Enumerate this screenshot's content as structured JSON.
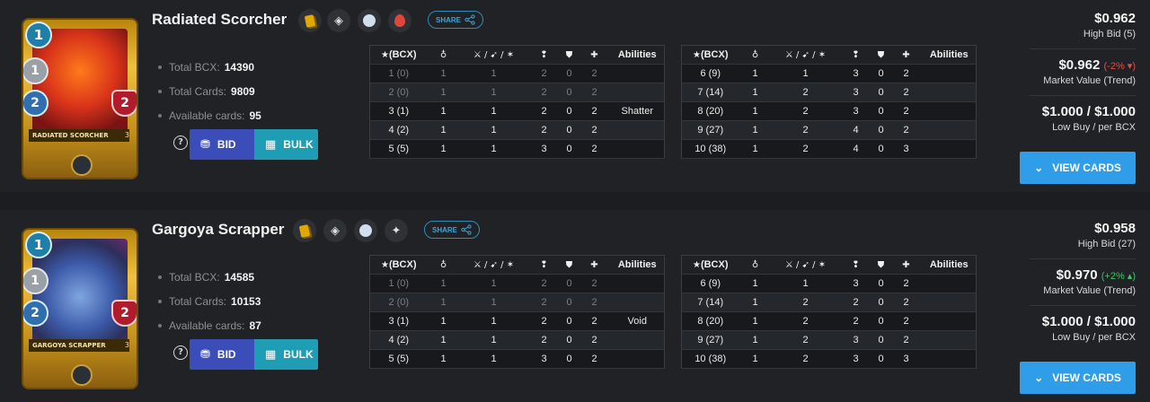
{
  "colors": {
    "background": "#1b1d20",
    "row": "#202225",
    "bid": "#3b4db8",
    "bulk": "#1e9db4",
    "view": "#2f9de8",
    "share": "#3aa7d8",
    "negative": "#e0504a",
    "positive": "#3ec46a"
  },
  "labels": {
    "share": "SHARE",
    "total_bcx": "Total BCX:",
    "total_cards": "Total Cards:",
    "available_cards": "Available cards:",
    "bid": "BID",
    "bulk": "BULK",
    "help": "?",
    "high_bid_prefix": "High Bid",
    "market_value": "Market Value (Trend)",
    "low_buy": "Low Buy / per BCX",
    "view_cards": "VIEW CARDS",
    "col_bcx": "(BCX)",
    "col_abilities": "Abilities"
  },
  "icons": [
    "star-icon",
    "mana-icon",
    "attack-icon",
    "speed-icon",
    "armor-icon",
    "health-icon",
    "share-icon",
    "coins-icon",
    "calculator-icon",
    "chevron-down-icon",
    "gold-card-icon",
    "neutral-icon",
    "water-element-icon",
    "fire-element-icon",
    "summoner-icon"
  ],
  "cards": [
    {
      "name": "Radiated Scorcher",
      "card_label": "RADIATED SCORCHER",
      "mana": "1",
      "attack": "1",
      "speed": "2",
      "health": "2",
      "card_level": "3",
      "total_bcx": "14390",
      "total_cards": "9809",
      "available_cards": "95",
      "high_bid": "$0.962",
      "high_bid_count": "High Bid (5)",
      "market_value": "$0.962",
      "trend": "(-2%",
      "trend_direction": "down",
      "low_buy": "$1.000 / $1.000",
      "icons": [
        "gold-card-icon",
        "neutral-icon",
        "water-element-icon",
        "fire-element-icon"
      ],
      "table_left": [
        [
          "1 (0)",
          "1",
          "1",
          "2",
          "0",
          "2",
          ""
        ],
        [
          "2 (0)",
          "1",
          "1",
          "2",
          "0",
          "2",
          ""
        ],
        [
          "3 (1)",
          "1",
          "1",
          "2",
          "0",
          "2",
          "Shatter"
        ],
        [
          "4 (2)",
          "1",
          "1",
          "2",
          "0",
          "2",
          ""
        ],
        [
          "5 (5)",
          "1",
          "1",
          "3",
          "0",
          "2",
          ""
        ]
      ],
      "table_right": [
        [
          "6 (9)",
          "1",
          "1",
          "3",
          "0",
          "2",
          ""
        ],
        [
          "7 (14)",
          "1",
          "2",
          "3",
          "0",
          "2",
          ""
        ],
        [
          "8 (20)",
          "1",
          "2",
          "3",
          "0",
          "2",
          ""
        ],
        [
          "9 (27)",
          "1",
          "2",
          "4",
          "0",
          "2",
          ""
        ],
        [
          "10 (38)",
          "1",
          "2",
          "4",
          "0",
          "3",
          ""
        ]
      ]
    },
    {
      "name": "Gargoya Scrapper",
      "card_label": "GARGOYA SCRAPPER",
      "mana": "1",
      "attack": "1",
      "speed": "2",
      "health": "2",
      "card_level": "3",
      "total_bcx": "14585",
      "total_cards": "10153",
      "available_cards": "87",
      "high_bid": "$0.958",
      "high_bid_count": "High Bid (27)",
      "market_value": "$0.970",
      "trend": "(+2%",
      "trend_direction": "up",
      "low_buy": "$1.000 / $1.000",
      "icons": [
        "gold-card-icon",
        "neutral-icon",
        "water-element-icon",
        "summoner-icon"
      ],
      "table_left": [
        [
          "1 (0)",
          "1",
          "1",
          "2",
          "0",
          "2",
          ""
        ],
        [
          "2 (0)",
          "1",
          "1",
          "2",
          "0",
          "2",
          ""
        ],
        [
          "3 (1)",
          "1",
          "1",
          "2",
          "0",
          "2",
          "Void"
        ],
        [
          "4 (2)",
          "1",
          "1",
          "2",
          "0",
          "2",
          ""
        ],
        [
          "5 (5)",
          "1",
          "1",
          "3",
          "0",
          "2",
          ""
        ]
      ],
      "table_right": [
        [
          "6 (9)",
          "1",
          "1",
          "3",
          "0",
          "2",
          ""
        ],
        [
          "7 (14)",
          "1",
          "2",
          "2",
          "0",
          "2",
          ""
        ],
        [
          "8 (20)",
          "1",
          "2",
          "2",
          "0",
          "2",
          ""
        ],
        [
          "9 (27)",
          "1",
          "2",
          "3",
          "0",
          "2",
          ""
        ],
        [
          "10 (38)",
          "1",
          "2",
          "3",
          "0",
          "3",
          ""
        ]
      ]
    }
  ]
}
